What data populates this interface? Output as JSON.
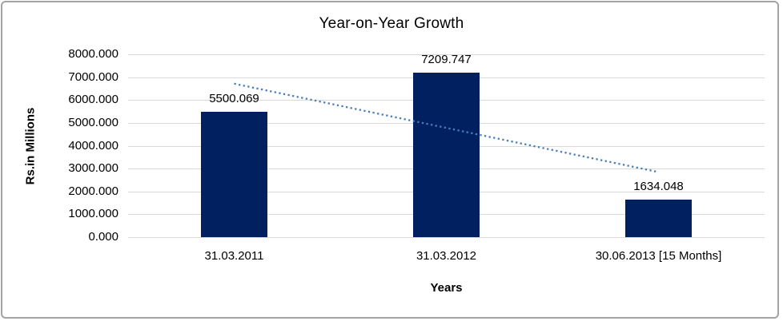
{
  "window": {
    "background_color": "#FFFFFF",
    "border_color": "#A3A3A3"
  },
  "chart_data": {
    "type": "bar",
    "title": "Year-on-Year Growth",
    "xlabel": "Years",
    "ylabel": "Rs.in Millions",
    "categories": [
      "31.03.2011",
      "31.03.2012",
      "30.06.2013 [15 Months]"
    ],
    "values": [
      5500.069,
      7209.747,
      1634.048
    ],
    "data_labels": [
      "5500.069",
      "7209.747",
      "1634.048"
    ],
    "ylim": [
      0,
      8000
    ],
    "y_ticks": {
      "values": [
        0,
        1000,
        2000,
        3000,
        4000,
        5000,
        6000,
        7000,
        8000
      ],
      "labels": [
        "0.000",
        "1000.000",
        "2000.000",
        "3000.000",
        "4000.000",
        "5000.000",
        "6000.000",
        "7000.000",
        "8000.000"
      ]
    },
    "grid": true,
    "legend": "none",
    "colors": {
      "bar": "#002060",
      "gridline": "#D9D9D9",
      "trendline": "#4A7EBB",
      "text": "#000000"
    },
    "trendline": {
      "type": "linear",
      "style": "dotted",
      "color": "#4A7EBB",
      "start_category_index": 0,
      "start_value": 6714,
      "end_category_index": 2,
      "end_value": 2848
    }
  }
}
